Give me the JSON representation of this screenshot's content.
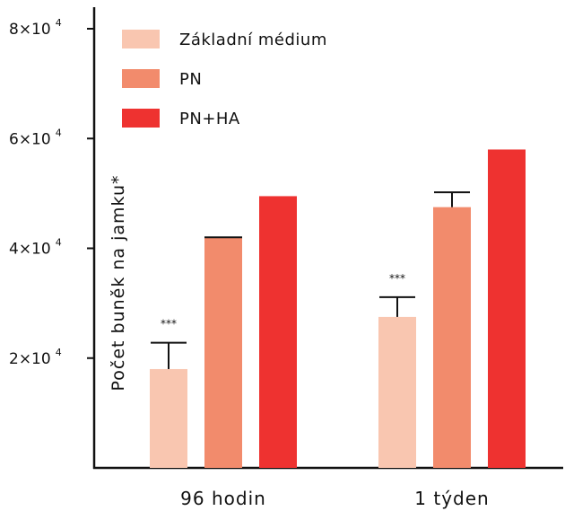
{
  "chart_data": {
    "type": "bar",
    "ylabel": "Počet buněk na jamku*",
    "xlabel": "",
    "title": "",
    "ylim": [
      0,
      80000
    ],
    "yticks": [
      {
        "value": 20000,
        "mantissa": "2x10",
        "exp": "4"
      },
      {
        "value": 40000,
        "mantissa": "4x10",
        "exp": "4"
      },
      {
        "value": 60000,
        "mantissa": "6x10",
        "exp": "4"
      },
      {
        "value": 80000,
        "mantissa": "8x10",
        "exp": "4"
      }
    ],
    "categories": [
      "96 hodin",
      "1 týden"
    ],
    "series": [
      {
        "name": "Základní médium",
        "color": "#f9c6b0",
        "values": [
          18000,
          27500
        ],
        "errors": [
          4800,
          3600
        ],
        "significance": [
          "***",
          "***"
        ]
      },
      {
        "name": "PN",
        "color": "#f28b6c",
        "values": [
          42000,
          47500
        ],
        "errors": [
          300,
          2700
        ],
        "significance": [
          "",
          ""
        ]
      },
      {
        "name": "PN+HA",
        "color": "#ee3230",
        "values": [
          49500,
          58000
        ],
        "errors": [
          0,
          0
        ],
        "significance": [
          "",
          ""
        ]
      }
    ],
    "legend_position": "top-left",
    "grid": false
  }
}
